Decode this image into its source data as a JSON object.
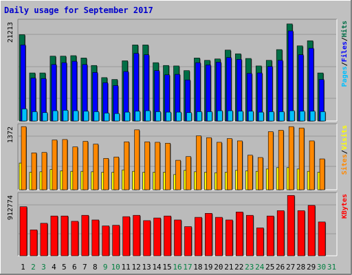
{
  "title": "Daily usage for September 2017",
  "colors": {
    "background": "#c0c0c0",
    "plot": "#bbbbbb",
    "title": "#0000cc",
    "hits": "#006e46",
    "files": "#0000ff",
    "pages": "#00c0ff",
    "visits": "#ffff00",
    "sites": "#ff8800",
    "kbytes": "#ff0000",
    "weekday_label": "#000000",
    "weekend_label": "#007f3f"
  },
  "chart_data": [
    {
      "type": "bar",
      "panel": "top",
      "y_tick_label": "21213",
      "ylim": [
        0,
        21213
      ],
      "legend": [
        {
          "text": "Pages",
          "color": "#00c0ff"
        },
        {
          "text": "/",
          "color": "#000000"
        },
        {
          "text": "Files",
          "color": "#0000ff"
        },
        {
          "text": "/",
          "color": "#000000"
        },
        {
          "text": "Hits",
          "color": "#006e46"
        }
      ],
      "categories": [
        "1",
        "2",
        "3",
        "4",
        "5",
        "6",
        "7",
        "8",
        "9",
        "10",
        "11",
        "12",
        "13",
        "14",
        "15",
        "16",
        "17",
        "18",
        "19",
        "20",
        "21",
        "22",
        "23",
        "24",
        "25",
        "26",
        "27",
        "28",
        "29",
        "30",
        "31"
      ],
      "series": [
        {
          "name": "Hits",
          "values": [
            18500,
            10300,
            10300,
            13900,
            13900,
            14000,
            13500,
            11900,
            9300,
            8900,
            12900,
            16300,
            16300,
            12500,
            11900,
            11800,
            10800,
            13500,
            13000,
            13300,
            15200,
            14400,
            13400,
            11800,
            13000,
            15300,
            20800,
            16100,
            17200,
            10300,
            0
          ]
        },
        {
          "name": "Files",
          "values": [
            16300,
            9200,
            9100,
            12100,
            12500,
            12800,
            12100,
            10400,
            8200,
            7600,
            10600,
            14500,
            14200,
            10800,
            9900,
            10000,
            8800,
            12500,
            12000,
            12600,
            13600,
            13200,
            10200,
            10300,
            11700,
            13000,
            19300,
            14200,
            15600,
            8900,
            0
          ]
        },
        {
          "name": "Pages",
          "values": [
            2600,
            2000,
            1800,
            2200,
            2300,
            2200,
            2100,
            2000,
            1700,
            1600,
            1900,
            2100,
            2200,
            2000,
            1900,
            1900,
            1800,
            2000,
            2000,
            2200,
            2200,
            2100,
            2100,
            1900,
            2000,
            2000,
            2200,
            2100,
            2100,
            2000,
            0
          ]
        }
      ]
    },
    {
      "type": "bar",
      "panel": "middle",
      "y_tick_label": "1372",
      "ylim": [
        0,
        1372
      ],
      "legend": [
        {
          "text": "Sites",
          "color": "#ff8800"
        },
        {
          "text": "/",
          "color": "#000000"
        },
        {
          "text": "Visits",
          "color": "#ffff00"
        }
      ],
      "categories": [
        "1",
        "2",
        "3",
        "4",
        "5",
        "6",
        "7",
        "8",
        "9",
        "10",
        "11",
        "12",
        "13",
        "14",
        "15",
        "16",
        "17",
        "18",
        "19",
        "20",
        "21",
        "22",
        "23",
        "24",
        "25",
        "26",
        "27",
        "28",
        "29",
        "30",
        "31"
      ],
      "series": [
        {
          "name": "Visits",
          "values": [
            580,
            380,
            390,
            440,
            410,
            400,
            400,
            390,
            380,
            380,
            430,
            400,
            380,
            380,
            380,
            330,
            420,
            390,
            380,
            370,
            380,
            420,
            410,
            400,
            450,
            480,
            480,
            450,
            400,
            380,
            0
          ]
        },
        {
          "name": "Sites",
          "values": [
            1370,
            800,
            810,
            1080,
            1090,
            930,
            1050,
            990,
            680,
            710,
            1040,
            1300,
            1040,
            1030,
            1010,
            640,
            720,
            1170,
            1130,
            1030,
            1110,
            1060,
            750,
            700,
            1260,
            1290,
            1370,
            1340,
            1060,
            670,
            0
          ]
        }
      ]
    },
    {
      "type": "bar",
      "panel": "bottom",
      "y_tick_label": "912774",
      "ylim": [
        0,
        912774
      ],
      "legend": [
        {
          "text": "KBytes",
          "color": "#ff0000"
        }
      ],
      "categories": [
        "1",
        "2",
        "3",
        "4",
        "5",
        "6",
        "7",
        "8",
        "9",
        "10",
        "11",
        "12",
        "13",
        "14",
        "15",
        "16",
        "17",
        "18",
        "19",
        "20",
        "21",
        "22",
        "23",
        "24",
        "25",
        "26",
        "27",
        "28",
        "29",
        "30",
        "31"
      ],
      "series": [
        {
          "name": "KBytes",
          "values": [
            740000,
            390000,
            490000,
            600000,
            600000,
            520000,
            610000,
            540000,
            450000,
            460000,
            590000,
            610000,
            530000,
            570000,
            600000,
            540000,
            440000,
            580000,
            640000,
            580000,
            540000,
            660000,
            610000,
            420000,
            600000,
            680000,
            910000,
            680000,
            760000,
            510000,
            0
          ]
        }
      ]
    }
  ],
  "x_labels": [
    {
      "text": "1",
      "weekend": false
    },
    {
      "text": "2",
      "weekend": true
    },
    {
      "text": "3",
      "weekend": true
    },
    {
      "text": "4",
      "weekend": false
    },
    {
      "text": "5",
      "weekend": false
    },
    {
      "text": "6",
      "weekend": false
    },
    {
      "text": "7",
      "weekend": false
    },
    {
      "text": "8",
      "weekend": false
    },
    {
      "text": "9",
      "weekend": true
    },
    {
      "text": "10",
      "weekend": true
    },
    {
      "text": "11",
      "weekend": false
    },
    {
      "text": "12",
      "weekend": false
    },
    {
      "text": "13",
      "weekend": false
    },
    {
      "text": "14",
      "weekend": false
    },
    {
      "text": "15",
      "weekend": false
    },
    {
      "text": "16",
      "weekend": true
    },
    {
      "text": "17",
      "weekend": true
    },
    {
      "text": "18",
      "weekend": false
    },
    {
      "text": "19",
      "weekend": false
    },
    {
      "text": "20",
      "weekend": false
    },
    {
      "text": "21",
      "weekend": false
    },
    {
      "text": "22",
      "weekend": false
    },
    {
      "text": "23",
      "weekend": true
    },
    {
      "text": "24",
      "weekend": true
    },
    {
      "text": "25",
      "weekend": false
    },
    {
      "text": "26",
      "weekend": false
    },
    {
      "text": "27",
      "weekend": false
    },
    {
      "text": "28",
      "weekend": false
    },
    {
      "text": "29",
      "weekend": false
    },
    {
      "text": "30",
      "weekend": true
    },
    {
      "text": "31",
      "weekend": true
    }
  ]
}
